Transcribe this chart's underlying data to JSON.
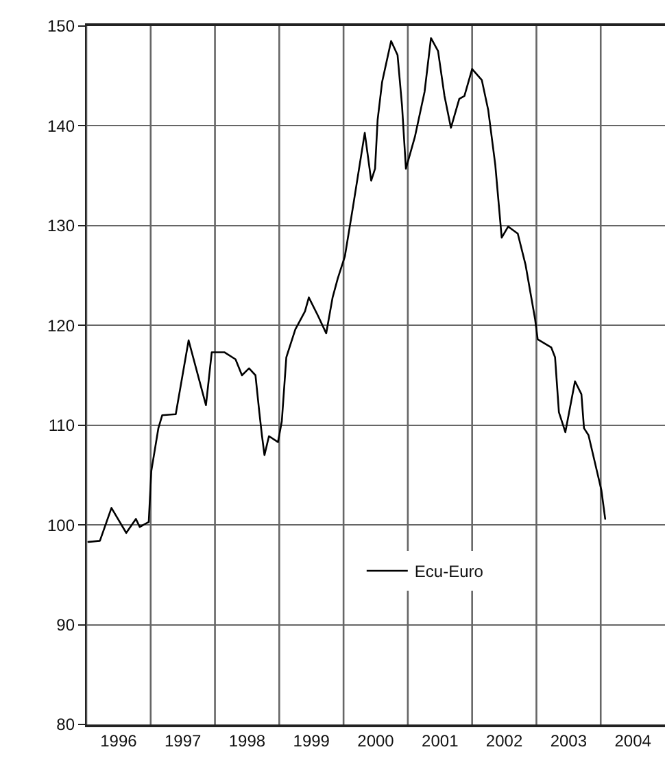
{
  "chart_data": {
    "type": "line",
    "x": [
      1996.03,
      1996.21,
      1996.39,
      1996.62,
      1996.77,
      1996.83,
      1996.97,
      1997.01,
      1997.12,
      1997.18,
      1997.39,
      1997.59,
      1997.86,
      1997.95,
      1998.15,
      1998.32,
      1998.42,
      1998.53,
      1998.63,
      1998.69,
      1998.73,
      1998.77,
      1998.84,
      1998.98,
      1999.04,
      1999.11,
      1999.25,
      1999.4,
      1999.46,
      1999.6,
      1999.73,
      1999.83,
      1999.91,
      2000.02,
      2000.14,
      2000.33,
      2000.43,
      2000.49,
      2000.53,
      2000.6,
      2000.74,
      2000.84,
      2000.91,
      2000.97,
      2001.11,
      2001.26,
      2001.36,
      2001.47,
      2001.57,
      2001.67,
      2001.8,
      2001.88,
      2002.0,
      2002.15,
      2002.25,
      2002.36,
      2002.46,
      2002.56,
      2002.71,
      2002.83,
      2002.98,
      2003.02,
      2003.23,
      2003.29,
      2003.35,
      2003.45,
      2003.6,
      2003.7,
      2003.74,
      2003.81,
      2004.01,
      2004.07
    ],
    "series": [
      {
        "name": "Ecu-Euro",
        "color": "#000000",
        "values": [
          98.3,
          98.4,
          101.7,
          99.2,
          100.6,
          99.8,
          100.3,
          105.4,
          109.7,
          111.0,
          111.1,
          118.5,
          112.0,
          117.3,
          117.3,
          116.6,
          115.0,
          115.7,
          115.0,
          111.3,
          109.0,
          107.0,
          108.9,
          108.3,
          110.4,
          116.8,
          119.6,
          121.4,
          122.8,
          121.0,
          119.2,
          122.8,
          124.7,
          126.9,
          131.6,
          139.3,
          134.5,
          135.7,
          140.6,
          144.4,
          148.5,
          147.1,
          142.0,
          135.7,
          138.9,
          143.4,
          148.8,
          147.5,
          143.0,
          139.8,
          142.7,
          143.0,
          145.7,
          144.6,
          141.6,
          136.1,
          128.8,
          129.9,
          129.2,
          126.1,
          120.6,
          118.6,
          117.8,
          116.8,
          111.3,
          109.3,
          114.4,
          113.1,
          109.7,
          109.0,
          103.5,
          100.6
        ]
      }
    ],
    "xlim": [
      1996,
      2005
    ],
    "xticks": [
      {
        "value": 1996,
        "label": null
      },
      {
        "value": 1997,
        "label": null
      },
      {
        "value": 1998,
        "label": null
      },
      {
        "value": 1999,
        "label": null
      },
      {
        "value": 2000,
        "label": null
      },
      {
        "value": 2001,
        "label": null
      },
      {
        "value": 2002,
        "label": null
      },
      {
        "value": 2003,
        "label": null
      },
      {
        "value": 2004,
        "label": null
      },
      {
        "value": 1996.5,
        "label": "1996"
      },
      {
        "value": 1997.5,
        "label": "1997"
      },
      {
        "value": 1998.5,
        "label": "1998"
      },
      {
        "value": 1999.5,
        "label": "1999"
      },
      {
        "value": 2000.5,
        "label": "2000"
      },
      {
        "value": 2001.5,
        "label": "2001"
      },
      {
        "value": 2002.5,
        "label": "2002"
      },
      {
        "value": 2003.5,
        "label": "2003"
      },
      {
        "value": 2004.5,
        "label": "2004"
      }
    ],
    "ylim": [
      80,
      150
    ],
    "yticks": [
      80,
      90,
      100,
      110,
      120,
      130,
      140,
      150
    ],
    "grid": true,
    "legend": "bottom right",
    "marker": "none",
    "line_style": "solid"
  }
}
